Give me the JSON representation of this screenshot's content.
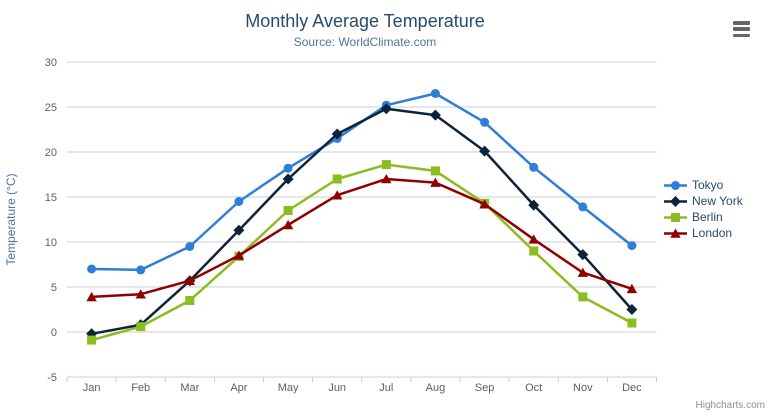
{
  "header": {
    "title": "Monthly Average Temperature",
    "subtitle": "Source: WorldClimate.com"
  },
  "menu": {
    "icon": "hamburger-menu-icon"
  },
  "credits": "Highcharts.com",
  "colors": {
    "title": "#274b6d",
    "subtitle": "#4d759e",
    "axis_title": "#4d759e",
    "tick_label": "#606060",
    "grid_line": "#cccccc",
    "axis_line": "#c0d0e0",
    "menu_icon": "#666666",
    "credits_text": "#909090",
    "tokyo": "#2f7ed8",
    "new_york": "#0d233a",
    "berlin": "#8bbc21",
    "london": "#910000"
  },
  "chart_data": {
    "type": "line",
    "title": "Monthly Average Temperature",
    "subtitle": "Source: WorldClimate.com",
    "xlabel": "",
    "ylabel": "Temperature (°C)",
    "ylim": [
      -5,
      30
    ],
    "yticks": [
      -5,
      0,
      5,
      10,
      15,
      20,
      25,
      30
    ],
    "grid": "horizontal",
    "legend_position": "right",
    "categories": [
      "Jan",
      "Feb",
      "Mar",
      "Apr",
      "May",
      "Jun",
      "Jul",
      "Aug",
      "Sep",
      "Oct",
      "Nov",
      "Dec"
    ],
    "series": [
      {
        "name": "Tokyo",
        "color": "#2f7ed8",
        "marker": "circle",
        "values": [
          7.0,
          6.9,
          9.5,
          14.5,
          18.2,
          21.5,
          25.2,
          26.5,
          23.3,
          18.3,
          13.9,
          9.6
        ]
      },
      {
        "name": "New York",
        "color": "#0d233a",
        "marker": "diamond",
        "values": [
          -0.2,
          0.8,
          5.7,
          11.3,
          17.0,
          22.0,
          24.8,
          24.1,
          20.1,
          14.1,
          8.6,
          2.5
        ]
      },
      {
        "name": "Berlin",
        "color": "#8bbc21",
        "marker": "square",
        "values": [
          -0.9,
          0.6,
          3.5,
          8.4,
          13.5,
          17.0,
          18.6,
          17.9,
          14.3,
          9.0,
          3.9,
          1.0
        ]
      },
      {
        "name": "London",
        "color": "#910000",
        "marker": "triangle",
        "values": [
          3.9,
          4.2,
          5.7,
          8.5,
          11.9,
          15.2,
          17.0,
          16.6,
          14.2,
          10.3,
          6.6,
          4.8
        ]
      }
    ]
  }
}
